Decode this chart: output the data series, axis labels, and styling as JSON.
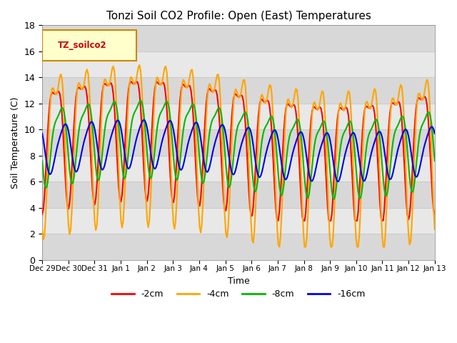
{
  "title": "Tonzi Soil CO2 Profile: Open (East) Temperatures",
  "xlabel": "Time",
  "ylabel": "Soil Temperature (C)",
  "ylim": [
    0,
    18
  ],
  "yticks": [
    0,
    2,
    4,
    6,
    8,
    10,
    12,
    14,
    16,
    18
  ],
  "legend_label": "TZ_soilco2",
  "legend_entries": [
    "-2cm",
    "-4cm",
    "-8cm",
    "-16cm"
  ],
  "line_colors": [
    "#ff0000",
    "#ffa500",
    "#00bb00",
    "#0000ee"
  ],
  "background_color": "#ffffff",
  "band_colors": [
    "#d8d8d8",
    "#e8e8e8"
  ],
  "x_tick_labels": [
    "Dec 29",
    "Dec 30",
    "Dec 31",
    "Jan 1",
    "Jan 2",
    "Jan 3",
    "Jan 4",
    "Jan 5",
    "Jan 6",
    "Jan 7",
    "Jan 8",
    "Jan 9",
    "Jan 10",
    "Jan 11",
    "Jan 12",
    "Jan 13"
  ],
  "figsize": [
    6.4,
    4.8
  ],
  "dpi": 100
}
